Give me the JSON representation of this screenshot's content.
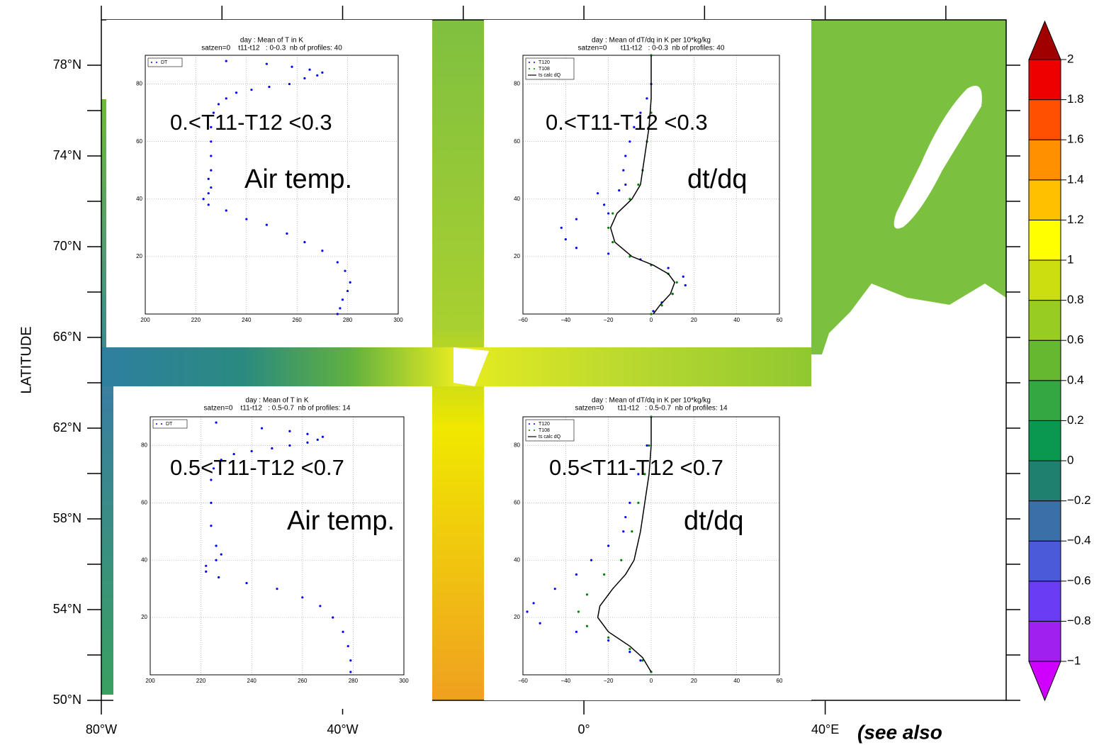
{
  "chart_data": [
    {
      "type": "map",
      "ylabel": "LATITUDE",
      "xlim": [
        -80,
        70
      ],
      "ylim": [
        50,
        80
      ],
      "xticks": [
        {
          "value": -80,
          "label": "80°W"
        },
        {
          "value": -40,
          "label": "40°W"
        },
        {
          "value": 0,
          "label": "0°"
        },
        {
          "value": 40,
          "label": "40°E"
        }
      ],
      "yticks": [
        {
          "value": 50,
          "label": "50°N"
        },
        {
          "value": 54,
          "label": "54°N"
        },
        {
          "value": 58,
          "label": "58°N"
        },
        {
          "value": 62,
          "label": "62°N"
        },
        {
          "value": 66,
          "label": "66°N"
        },
        {
          "value": 70,
          "label": "70°N"
        },
        {
          "value": 74,
          "label": "74°N"
        },
        {
          "value": 78,
          "label": "78°N"
        }
      ],
      "xminor": [
        -80,
        -60,
        -40,
        -20,
        0,
        20,
        40,
        60
      ],
      "yminor": [
        52,
        56,
        60,
        64,
        68,
        72,
        76
      ],
      "colorbar": {
        "lim": [
          -1,
          2
        ],
        "ticks": [
          {
            "value": -1,
            "label": "−1"
          },
          {
            "value": -0.8,
            "label": "−0.8"
          },
          {
            "value": -0.6,
            "label": "−0.6"
          },
          {
            "value": -0.4,
            "label": "−0.4"
          },
          {
            "value": -0.2,
            "label": "−0.2"
          },
          0,
          0.2,
          0.4,
          0.6,
          0.8,
          1,
          1.2,
          1.4,
          1.6,
          1.8,
          2
        ],
        "colors": [
          "#a020f0",
          "#6a3df5",
          "#4a5ad8",
          "#3a6fa8",
          "#1f8070",
          "#0a9850",
          "#33a840",
          "#66b830",
          "#99cc20",
          "#ccdd10",
          "#ffff00",
          "#ffc000",
          "#ff9000",
          "#ff5000",
          "#ee0000"
        ],
        "under": "#d000ff",
        "over": "#a00000"
      }
    },
    {
      "type": "scatter",
      "title": "day : Mean of T in K",
      "subtitle": "satzen=0    t11-t12   : 0-0.3  nb of profiles: 40",
      "xlim": [
        200,
        300
      ],
      "ylim": [
        0,
        90
      ],
      "xticks": [
        200,
        220,
        240,
        260,
        280,
        300
      ],
      "yticks": [
        20,
        40,
        60,
        80
      ],
      "grid": true,
      "annotations": [
        "0.<T11-T12 <0.3",
        "Air temp."
      ],
      "series": [
        {
          "name": "DT",
          "color": "#0000ff",
          "style": "dots",
          "x": [
            232,
            248,
            258,
            265,
            270,
            268,
            263,
            257,
            249,
            242,
            236,
            232,
            229,
            227,
            226,
            226,
            226,
            226,
            225,
            226,
            225,
            223,
            225,
            232,
            240,
            248,
            256,
            263,
            270,
            276,
            279,
            281,
            280,
            278,
            277,
            276
          ],
          "values": [
            88,
            87,
            86,
            85,
            84,
            83,
            82,
            80,
            79,
            78,
            77,
            75,
            73,
            70,
            65,
            60,
            55,
            50,
            47,
            44,
            42,
            40,
            38,
            36,
            33,
            31,
            28,
            25,
            22,
            18,
            15,
            11,
            8,
            5,
            2,
            0
          ]
        }
      ]
    },
    {
      "type": "line",
      "title": "day : Mean of dT/dq in K per 10*kg/kg",
      "subtitle": "satzen=0       t11-t12   : 0-0.3  nb of profiles: 40",
      "xlim": [
        -60,
        60
      ],
      "ylim": [
        0,
        90
      ],
      "xticks": [
        {
          "value": -60,
          "label": "−60"
        },
        {
          "value": -40,
          "label": "−40"
        },
        {
          "value": -20,
          "label": "−20"
        },
        0,
        20,
        40,
        60
      ],
      "yticks": [
        20,
        40,
        60,
        80
      ],
      "grid": true,
      "annotations": [
        "0.<T11-T12 <0.3",
        "dt/dq"
      ],
      "series": [
        {
          "name": "T120",
          "color": "#0000ff",
          "style": "dots",
          "x": [
            0,
            0,
            -2,
            -5,
            -8,
            -10,
            -12,
            -13,
            -12,
            -15,
            -25,
            -22,
            -20,
            -35,
            -42,
            -40,
            -35,
            -20,
            -5,
            8,
            15,
            16,
            10,
            5,
            1
          ],
          "values": [
            90,
            80,
            75,
            70,
            65,
            60,
            55,
            50,
            45,
            43,
            42,
            38,
            35,
            33,
            30,
            26,
            23,
            21,
            19,
            16,
            13,
            10,
            7,
            4,
            1
          ]
        },
        {
          "name": "T108",
          "color": "#008000",
          "style": "dots",
          "x": [
            0,
            0,
            -2,
            -4,
            -6,
            -10,
            -18,
            -20,
            -18,
            -10,
            0,
            8,
            12,
            10,
            5,
            0
          ],
          "values": [
            90,
            70,
            60,
            50,
            45,
            40,
            35,
            30,
            25,
            20,
            17,
            14,
            11,
            7,
            3,
            0
          ]
        },
        {
          "name": "ts calc dQ",
          "color": "#000000",
          "style": "line",
          "x": [
            0,
            0,
            -1,
            -3,
            -5,
            -9,
            -16,
            -19,
            -17,
            -9,
            1,
            8,
            11,
            9,
            4,
            1
          ],
          "values": [
            90,
            75,
            65,
            55,
            45,
            40,
            35,
            30,
            25,
            20,
            17,
            14,
            11,
            7,
            3,
            0
          ]
        }
      ]
    },
    {
      "type": "scatter",
      "title": "day : Mean of T in K",
      "subtitle": "satzen=0    t11-t12   : 0.5-0.7  nb of profiles: 14",
      "xlim": [
        200,
        300
      ],
      "ylim": [
        0,
        90
      ],
      "xticks": [
        200,
        220,
        240,
        260,
        280,
        300
      ],
      "yticks": [
        20,
        40,
        60,
        80
      ],
      "grid": true,
      "annotations": [
        "0.5<T11-T12 <0.7",
        "Air temp."
      ],
      "series": [
        {
          "name": "DT",
          "color": "#0000ff",
          "style": "dots",
          "x": [
            226,
            244,
            255,
            262,
            268,
            266,
            262,
            255,
            248,
            240,
            233,
            228,
            225,
            224,
            224,
            224,
            226,
            228,
            226,
            222,
            222,
            227,
            238,
            250,
            260,
            267,
            272,
            276,
            278,
            279,
            279
          ],
          "values": [
            88,
            86,
            85,
            84,
            83,
            82,
            81,
            80,
            79,
            78,
            77,
            75,
            72,
            68,
            60,
            52,
            45,
            42,
            40,
            38,
            36,
            34,
            32,
            30,
            27,
            24,
            20,
            15,
            10,
            5,
            1
          ]
        }
      ]
    },
    {
      "type": "line",
      "title": "day : Mean of dT/dq in K per 10*kg/kg",
      "subtitle": "satzen=0       t11-t12   : 0.5-0.7  nb of profiles: 14",
      "xlim": [
        -60,
        60
      ],
      "ylim": [
        0,
        90
      ],
      "xticks": [
        {
          "value": -60,
          "label": "−60"
        },
        {
          "value": -40,
          "label": "−40"
        },
        {
          "value": -20,
          "label": "−20"
        },
        0,
        20,
        40,
        60
      ],
      "yticks": [
        20,
        40,
        60,
        80
      ],
      "grid": true,
      "annotations": [
        "0.5<T11-T12 <0.7",
        "dt/dq"
      ],
      "series": [
        {
          "name": "T120",
          "color": "#0000ff",
          "style": "dots",
          "x": [
            0,
            -2,
            -6,
            -10,
            -12,
            -13,
            -20,
            -28,
            -35,
            -45,
            -55,
            -58,
            -52,
            -35,
            -20,
            -10,
            -5,
            0
          ],
          "values": [
            90,
            80,
            70,
            60,
            55,
            50,
            45,
            40,
            35,
            30,
            25,
            22,
            18,
            15,
            12,
            8,
            5,
            1
          ]
        },
        {
          "name": "T108",
          "color": "#008000",
          "style": "dots",
          "x": [
            0,
            -1,
            -3,
            -6,
            -9,
            -14,
            -22,
            -30,
            -34,
            -30,
            -20,
            -10,
            -4,
            0
          ],
          "values": [
            90,
            80,
            70,
            60,
            50,
            40,
            35,
            28,
            22,
            17,
            13,
            9,
            5,
            1
          ]
        },
        {
          "name": "ts calc dQ",
          "color": "#000000",
          "style": "line",
          "x": [
            0,
            0,
            -1,
            -3,
            -5,
            -8,
            -12,
            -18,
            -24,
            -25,
            -20,
            -10,
            -4,
            0
          ],
          "values": [
            90,
            80,
            70,
            60,
            50,
            40,
            35,
            30,
            24,
            20,
            15,
            10,
            6,
            1
          ]
        }
      ]
    }
  ],
  "footer_text": "(see also"
}
